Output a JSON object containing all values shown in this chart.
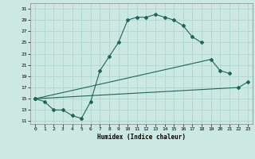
{
  "xlabel": "Humidex (Indice chaleur)",
  "bg_color": "#cce8e2",
  "grid_color": "#aad0c8",
  "line_color": "#1a6858",
  "xlim": [
    -0.5,
    23.5
  ],
  "ylim": [
    10.5,
    32.0
  ],
  "yticks": [
    11,
    13,
    15,
    17,
    19,
    21,
    23,
    25,
    27,
    29,
    31
  ],
  "xticks": [
    0,
    1,
    2,
    3,
    4,
    5,
    6,
    7,
    8,
    9,
    10,
    11,
    12,
    13,
    14,
    15,
    16,
    17,
    18,
    19,
    20,
    21,
    22,
    23
  ],
  "line1_x": [
    0,
    1,
    2,
    3,
    4,
    5,
    6,
    7,
    8,
    9,
    10,
    11,
    12,
    13,
    14,
    15,
    16,
    17,
    18
  ],
  "line1_y": [
    15,
    14.5,
    13,
    13,
    12,
    11.5,
    14.5,
    20,
    22.5,
    25,
    29,
    29.5,
    29.5,
    30,
    29.5,
    29,
    28,
    26,
    25
  ],
  "line2_x": [
    0,
    19,
    20,
    21
  ],
  "line2_y": [
    15,
    22,
    20,
    19.5
  ],
  "line3_x": [
    0,
    22,
    23
  ],
  "line3_y": [
    15,
    17,
    18
  ]
}
